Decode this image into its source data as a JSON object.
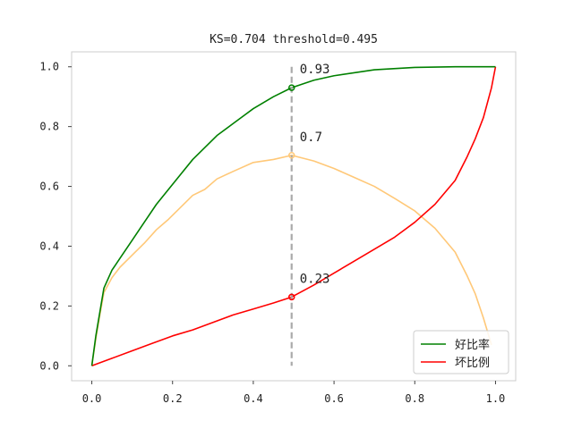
{
  "chart_data": {
    "type": "line",
    "title": "KS=0.704 threshold=0.495",
    "xlim": [
      -0.05,
      1.05
    ],
    "ylim": [
      -0.05,
      1.05
    ],
    "xticks": [
      "0.0",
      "0.2",
      "0.4",
      "0.6",
      "0.8",
      "1.0"
    ],
    "yticks": [
      "0.0",
      "0.2",
      "0.4",
      "0.6",
      "0.8",
      "1.0"
    ],
    "grid": false,
    "legend_position": "lower-right",
    "threshold": 0.495,
    "colors": {
      "good": "#008000",
      "bad": "#ff0000",
      "ks": "#ffc878",
      "threshold_line": "#aaaaaa"
    },
    "series": [
      {
        "name": "好比率",
        "key": "good",
        "x": [
          0.0,
          0.01,
          0.02,
          0.03,
          0.05,
          0.07,
          0.1,
          0.13,
          0.16,
          0.19,
          0.22,
          0.25,
          0.28,
          0.31,
          0.35,
          0.4,
          0.45,
          0.495,
          0.55,
          0.6,
          0.7,
          0.8,
          0.9,
          1.0
        ],
        "y": [
          0.0,
          0.1,
          0.18,
          0.26,
          0.32,
          0.36,
          0.42,
          0.48,
          0.54,
          0.59,
          0.64,
          0.69,
          0.73,
          0.77,
          0.81,
          0.86,
          0.9,
          0.93,
          0.955,
          0.97,
          0.99,
          0.998,
          1.0,
          1.0
        ]
      },
      {
        "name": "坏比例",
        "key": "bad",
        "x": [
          0.0,
          0.05,
          0.1,
          0.15,
          0.2,
          0.25,
          0.3,
          0.35,
          0.4,
          0.45,
          0.495,
          0.55,
          0.6,
          0.65,
          0.7,
          0.75,
          0.8,
          0.85,
          0.9,
          0.93,
          0.95,
          0.97,
          0.99,
          1.0
        ],
        "y": [
          0.0,
          0.025,
          0.05,
          0.075,
          0.1,
          0.12,
          0.145,
          0.17,
          0.19,
          0.21,
          0.23,
          0.27,
          0.31,
          0.35,
          0.39,
          0.43,
          0.48,
          0.54,
          0.62,
          0.7,
          0.76,
          0.83,
          0.93,
          1.0
        ]
      },
      {
        "key": "ks",
        "x": [
          0.0,
          0.01,
          0.02,
          0.03,
          0.05,
          0.07,
          0.1,
          0.13,
          0.16,
          0.19,
          0.22,
          0.25,
          0.28,
          0.31,
          0.35,
          0.4,
          0.45,
          0.495,
          0.55,
          0.6,
          0.65,
          0.7,
          0.75,
          0.8,
          0.85,
          0.9,
          0.93,
          0.95,
          0.97,
          0.99
        ],
        "y": [
          0.0,
          0.09,
          0.17,
          0.245,
          0.295,
          0.33,
          0.37,
          0.41,
          0.455,
          0.49,
          0.53,
          0.57,
          0.59,
          0.625,
          0.65,
          0.68,
          0.69,
          0.704,
          0.685,
          0.66,
          0.63,
          0.6,
          0.56,
          0.518,
          0.46,
          0.38,
          0.3,
          0.24,
          0.16,
          0.07
        ]
      }
    ],
    "annotations": [
      {
        "x": 0.495,
        "y": 0.93,
        "label": "0.93",
        "key": "good"
      },
      {
        "x": 0.495,
        "y": 0.704,
        "label": "0.7",
        "key": "ks"
      },
      {
        "x": 0.495,
        "y": 0.23,
        "label": "0.23",
        "key": "bad"
      }
    ]
  }
}
